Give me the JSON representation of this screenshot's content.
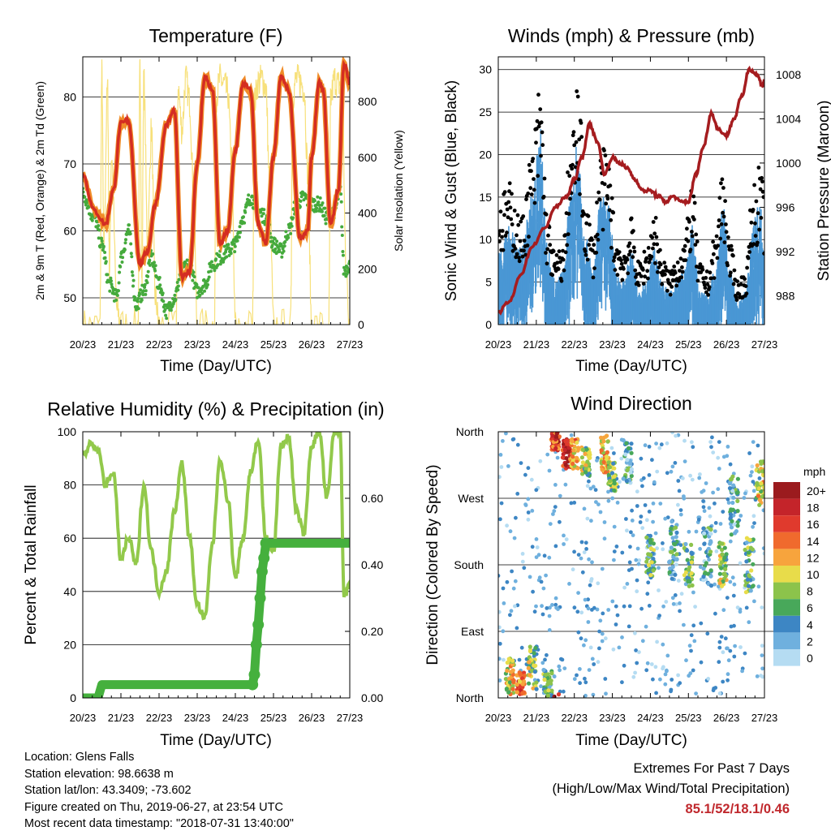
{
  "x_ticks": [
    "20/23",
    "21/23",
    "22/23",
    "23/23",
    "24/23",
    "25/23",
    "26/23",
    "27/23"
  ],
  "x_label": "Time (Day/UTC)",
  "colors": {
    "temp_2m": "#d42d22",
    "temp_9m": "#f08c28",
    "dewpoint": "#45aa3c",
    "insolation": "#f7e07a",
    "wind": "#4a97d4",
    "gust": "#000000",
    "pressure": "#a51c1f",
    "rh": "#92c94b",
    "precip": "#45b03d",
    "extremes": "#c0282d"
  },
  "panels": {
    "temperature": {
      "title": "Temperature (F)",
      "ylabel_left": "2m & 9m T (Red, Orange) & 2m Td (Green)",
      "ylabel_right": "Solar Insolation (Yellow)"
    },
    "winds": {
      "title": "Winds (mph) & Pressure (mb)",
      "ylabel_left": "Sonic Wind & Gust (Blue, Black)",
      "ylabel_right": "Station Pressure (Maroon)"
    },
    "humidity": {
      "title": "Relative Humidity (%) & Precipitation (in)",
      "ylabel_left": "Percent & Total Rainfall"
    },
    "direction": {
      "title": "Wind Direction",
      "ylabel_left": "Direction (Colored By Speed)"
    }
  },
  "legend": {
    "title": "mph",
    "labels": [
      "20+",
      "18",
      "16",
      "14",
      "12",
      "10",
      "8",
      "6",
      "4",
      "2",
      "0"
    ],
    "colors": [
      "#9b1b1e",
      "#c4242a",
      "#e03a2d",
      "#f06a2d",
      "#f7a43d",
      "#e8dc4a",
      "#8cc34b",
      "#48a85a",
      "#3d86c4",
      "#6fb0de",
      "#b5dcf2"
    ]
  },
  "info": {
    "location": "Location: Glens Falls",
    "elevation": "Station elevation: 98.6638 m",
    "latlon": "Station lat/lon: 43.3409; -73.602",
    "created": "Figure created on Thu, 2019-06-27, at 23:54 UTC",
    "recent": "Most recent data timestamp: \"2018-07-31 13:40:00\""
  },
  "extremes": {
    "title": "Extremes For Past 7 Days",
    "subtitle": "(High/Low/Max Wind/Total Precipitation)",
    "values": "85.1/52/18.1/0.46"
  },
  "chart_data": [
    {
      "type": "line",
      "title": "Temperature (F)",
      "xlabel": "Time (Day/UTC)",
      "ylabel": "2m & 9m T (Red, Orange) & 2m Td (Green)",
      "y2label": "Solar Insolation (Yellow)",
      "ylim": [
        46,
        86
      ],
      "y_ticks": [
        50,
        60,
        70,
        80
      ],
      "y2lim": [
        0,
        960
      ],
      "y2_ticks": [
        0,
        200,
        400,
        600,
        800
      ],
      "x_ticks": [
        "20/23",
        "21/23",
        "22/23",
        "23/23",
        "24/23",
        "25/23",
        "26/23",
        "27/23"
      ],
      "grid": true,
      "series": [
        {
          "name": "2m & 9m T",
          "axis": "left",
          "x": [
            0,
            0.3,
            0.6,
            0.8,
            1.0,
            1.2,
            1.5,
            1.7,
            1.9,
            2.2,
            2.4,
            2.6,
            2.8,
            3.0,
            3.2,
            3.4,
            3.6,
            3.8,
            4.0,
            4.2,
            4.4,
            4.6,
            4.8,
            5.0,
            5.2,
            5.4,
            5.7,
            5.9,
            6.0,
            6.2,
            6.3,
            6.5,
            6.7,
            6.85,
            7.0
          ],
          "y": [
            68.5,
            63,
            61,
            66,
            76,
            76.5,
            55,
            57,
            64,
            76,
            78,
            53,
            54,
            70,
            83,
            81,
            58,
            60,
            72,
            82,
            81,
            61,
            58,
            71,
            83,
            81,
            59,
            60,
            71,
            82,
            81,
            61,
            66,
            85,
            82
          ]
        },
        {
          "name": "2m Td",
          "axis": "left",
          "x": [
            0,
            0.3,
            0.5,
            0.7,
            0.9,
            1.0,
            1.2,
            1.4,
            1.6,
            1.8,
            2.0,
            2.2,
            2.4,
            2.6,
            2.8,
            3.0,
            3.2,
            3.4,
            3.6,
            3.8,
            4.0,
            4.2,
            4.4,
            4.6,
            4.8,
            5.0,
            5.2,
            5.4,
            5.6,
            5.8,
            6.0,
            6.2,
            6.4,
            6.6,
            6.75,
            6.85,
            7.0
          ],
          "y": [
            65.5,
            62,
            58,
            52,
            50,
            56,
            60,
            49,
            51,
            56,
            52,
            48,
            50,
            54,
            55,
            51,
            52,
            55,
            56,
            57,
            58,
            62,
            65,
            63,
            62,
            58,
            57,
            60,
            64,
            65,
            64,
            64,
            62,
            63,
            66,
            54,
            55
          ]
        },
        {
          "name": "Solar Insolation",
          "axis": "right",
          "x": [
            0,
            0.45,
            0.5,
            0.55,
            0.65,
            0.7,
            0.75,
            0.9,
            1.0,
            1.45,
            1.5,
            1.55,
            1.6,
            1.7,
            1.8,
            1.9,
            2.0,
            2.45,
            2.5,
            2.6,
            2.7,
            2.8,
            2.9,
            3.0,
            3.45,
            3.5,
            3.6,
            3.7,
            3.8,
            3.9,
            4.0,
            4.45,
            4.5,
            4.6,
            4.7,
            4.8,
            4.9,
            5.0,
            5.45,
            5.5,
            5.6,
            5.7,
            5.8,
            5.9,
            6.0,
            6.45,
            6.5,
            6.6,
            6.7,
            6.8,
            6.9,
            7.0
          ],
          "y": [
            0,
            0,
            900,
            300,
            850,
            200,
            600,
            50,
            0,
            0,
            920,
            150,
            880,
            300,
            700,
            100,
            0,
            0,
            850,
            700,
            880,
            800,
            500,
            0,
            0,
            820,
            880,
            860,
            830,
            600,
            0,
            0,
            800,
            870,
            880,
            850,
            500,
            0,
            0,
            820,
            880,
            870,
            850,
            550,
            0,
            0,
            810,
            880,
            860,
            880,
            200,
            0
          ]
        }
      ]
    },
    {
      "type": "scatter",
      "title": "Winds (mph) & Pressure (mb)",
      "xlabel": "Time (Day/UTC)",
      "ylabel": "Sonic Wind & Gust (Blue, Black)",
      "y2label": "Station Pressure (Maroon)",
      "ylim": [
        0,
        31.5
      ],
      "y_ticks": [
        0,
        5,
        10,
        15,
        20,
        25,
        30
      ],
      "y2lim": [
        985.4,
        1009.6
      ],
      "y2_ticks": [
        988,
        992,
        996,
        1000,
        1004,
        1008
      ],
      "x_ticks": [
        "20/23",
        "21/23",
        "22/23",
        "23/23",
        "24/23",
        "25/23",
        "26/23",
        "27/23"
      ],
      "grid": true,
      "series": [
        {
          "name": "Station Pressure",
          "axis": "right",
          "x": [
            0,
            0.3,
            0.6,
            0.9,
            1.2,
            1.5,
            1.8,
            2.0,
            2.2,
            2.4,
            2.6,
            2.8,
            3.0,
            3.2,
            3.4,
            3.6,
            3.8,
            4.0,
            4.2,
            4.4,
            4.6,
            4.8,
            5.0,
            5.2,
            5.4,
            5.6,
            5.8,
            6.0,
            6.2,
            6.4,
            6.6,
            6.8,
            6.95,
            7.0
          ],
          "y": [
            986.5,
            987.5,
            990,
            992.5,
            994,
            996,
            997,
            998.5,
            1000.5,
            1003.5,
            1002,
            999,
            1000.5,
            1000,
            999.5,
            998.5,
            997.5,
            997.5,
            997,
            996.5,
            997,
            996.5,
            996.5,
            999,
            1001.5,
            1004.5,
            1003,
            1002.5,
            1004,
            1006,
            1008.5,
            1008,
            1007,
            1007.5
          ]
        },
        {
          "name": "Gust envelope",
          "axis": "left",
          "x": [
            0,
            0.3,
            0.6,
            0.9,
            1.1,
            1.3,
            1.5,
            1.7,
            1.9,
            2.1,
            2.3,
            2.5,
            2.7,
            2.9,
            3.1,
            3.3,
            3.5,
            3.7,
            3.9,
            4.1,
            4.3,
            4.5,
            4.7,
            4.9,
            5.1,
            5.3,
            5.5,
            5.7,
            5.9,
            6.1,
            6.3,
            6.5,
            6.7,
            6.9,
            7.0
          ],
          "y": [
            14,
            16,
            12,
            20,
            28,
            12,
            8,
            9,
            21,
            27,
            14,
            10,
            20,
            19,
            10,
            9,
            12,
            7,
            9,
            13,
            8,
            6,
            8,
            10,
            16,
            7,
            6,
            10,
            18,
            9,
            5,
            6,
            16,
            18,
            14
          ]
        },
        {
          "name": "Sonic Wind envelope",
          "axis": "left",
          "x": [
            0,
            0.3,
            0.6,
            0.9,
            1.1,
            1.3,
            1.5,
            1.7,
            1.9,
            2.1,
            2.3,
            2.5,
            2.7,
            2.9,
            3.1,
            3.3,
            3.5,
            3.7,
            3.9,
            4.1,
            4.3,
            4.5,
            4.7,
            4.9,
            5.1,
            5.3,
            5.5,
            5.7,
            5.9,
            6.1,
            6.3,
            6.5,
            6.7,
            6.9,
            7.0
          ],
          "y": [
            7,
            9,
            7,
            12,
            18,
            7,
            4,
            5,
            12,
            17,
            8,
            5,
            12,
            11,
            5,
            4,
            7,
            3,
            4,
            7,
            4,
            3,
            4,
            5,
            9,
            3,
            3,
            5,
            11,
            5,
            2,
            3,
            10,
            11,
            8
          ]
        }
      ]
    },
    {
      "type": "line",
      "title": "Relative Humidity (%) & Precipitation (in)",
      "xlabel": "Time (Day/UTC)",
      "ylabel": "Percent & Total Rainfall",
      "ylim": [
        0,
        100
      ],
      "y_ticks": [
        0,
        20,
        40,
        60,
        80,
        100
      ],
      "y2lim": [
        0,
        0.8
      ],
      "y2_ticks": [
        0.0,
        0.2,
        0.4,
        0.6
      ],
      "x_ticks": [
        "20/23",
        "21/23",
        "22/23",
        "23/23",
        "24/23",
        "25/23",
        "26/23",
        "27/23"
      ],
      "grid": true,
      "series": [
        {
          "name": "Relative Humidity",
          "axis": "left",
          "x": [
            0,
            0.2,
            0.4,
            0.6,
            0.8,
            1.0,
            1.2,
            1.4,
            1.6,
            1.8,
            2.0,
            2.2,
            2.4,
            2.6,
            2.8,
            3.0,
            3.2,
            3.4,
            3.6,
            3.8,
            4.0,
            4.2,
            4.4,
            4.6,
            4.8,
            5.0,
            5.2,
            5.4,
            5.6,
            5.8,
            6.0,
            6.2,
            6.4,
            6.6,
            6.75,
            6.85,
            7.0
          ],
          "y": [
            91,
            95,
            93,
            80,
            85,
            52,
            60,
            50,
            80,
            55,
            40,
            48,
            70,
            88,
            60,
            35,
            30,
            58,
            90,
            75,
            45,
            60,
            85,
            97,
            60,
            55,
            95,
            98,
            70,
            62,
            95,
            100,
            75,
            100,
            100,
            38,
            42
          ]
        },
        {
          "name": "Total Precipitation",
          "axis": "right",
          "x": [
            0,
            0.4,
            0.5,
            1.0,
            2.0,
            3.0,
            4.0,
            4.45,
            4.5,
            4.55,
            4.6,
            4.65,
            4.7,
            4.75,
            4.8,
            5.0,
            6.0,
            7.0
          ],
          "y": [
            0,
            0,
            0.04,
            0.04,
            0.04,
            0.04,
            0.04,
            0.04,
            0.07,
            0.16,
            0.22,
            0.3,
            0.38,
            0.42,
            0.465,
            0.465,
            0.465,
            0.465
          ]
        }
      ]
    },
    {
      "type": "scatter",
      "title": "Wind Direction",
      "xlabel": "Time (Day/UTC)",
      "ylabel": "Direction (Colored By Speed)",
      "y_ticks": [
        "North",
        "East",
        "South",
        "West",
        "North"
      ],
      "y_tick_values": [
        0,
        90,
        180,
        270,
        360
      ],
      "ylim": [
        0,
        360
      ],
      "x_ticks": [
        "20/23",
        "21/23",
        "22/23",
        "23/23",
        "24/23",
        "25/23",
        "26/23",
        "27/23"
      ],
      "color_scale": "mph",
      "clusters": [
        {
          "x": 0.3,
          "dir": 30,
          "spread": 25,
          "speed": 10
        },
        {
          "x": 0.6,
          "dir": 20,
          "spread": 15,
          "speed": 14
        },
        {
          "x": 0.9,
          "dir": 40,
          "spread": 30,
          "speed": 8
        },
        {
          "x": 1.3,
          "dir": 20,
          "spread": 20,
          "speed": 6
        },
        {
          "x": 1.5,
          "dir": 350,
          "spread": 15,
          "speed": 16
        },
        {
          "x": 1.8,
          "dir": 330,
          "spread": 20,
          "speed": 18
        },
        {
          "x": 2.0,
          "dir": 330,
          "spread": 20,
          "speed": 12
        },
        {
          "x": 2.3,
          "dir": 320,
          "spread": 20,
          "speed": 8
        },
        {
          "x": 2.8,
          "dir": 330,
          "spread": 25,
          "speed": 12
        },
        {
          "x": 3.0,
          "dir": 300,
          "spread": 20,
          "speed": 8
        },
        {
          "x": 3.4,
          "dir": 320,
          "spread": 30,
          "speed": 4
        },
        {
          "x": 4.0,
          "dir": 190,
          "spread": 30,
          "speed": 6
        },
        {
          "x": 4.6,
          "dir": 200,
          "spread": 40,
          "speed": 4
        },
        {
          "x": 5.0,
          "dir": 180,
          "spread": 30,
          "speed": 6
        },
        {
          "x": 5.5,
          "dir": 190,
          "spread": 40,
          "speed": 4
        },
        {
          "x": 5.9,
          "dir": 180,
          "spread": 30,
          "speed": 8
        },
        {
          "x": 6.2,
          "dir": 260,
          "spread": 40,
          "speed": 4
        },
        {
          "x": 6.6,
          "dir": 180,
          "spread": 40,
          "speed": 6
        },
        {
          "x": 6.9,
          "dir": 290,
          "spread": 30,
          "speed": 10
        }
      ]
    }
  ]
}
